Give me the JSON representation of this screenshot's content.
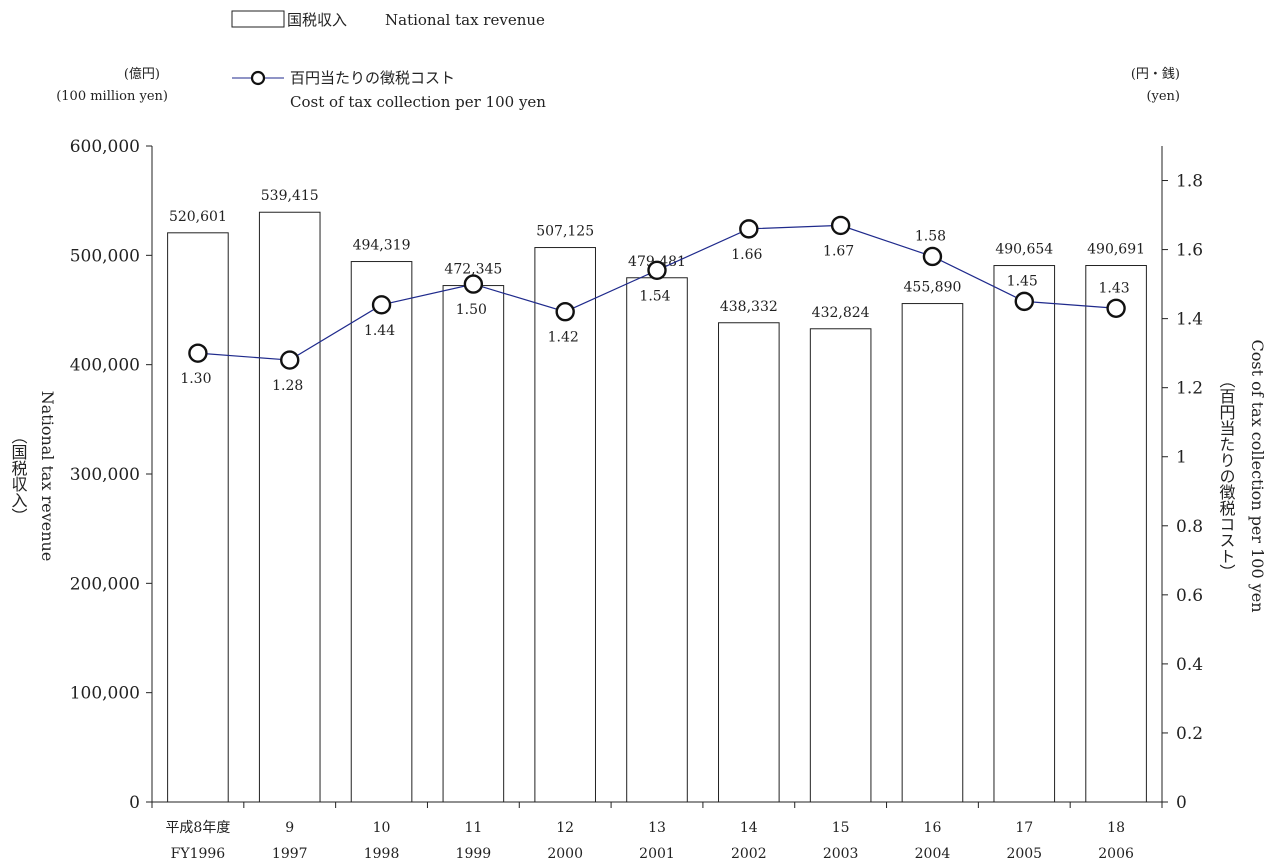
{
  "chart_data": {
    "type": "bar",
    "categories": [
      "平成8年度",
      "9",
      "10",
      "11",
      "12",
      "13",
      "14",
      "15",
      "16",
      "17",
      "18"
    ],
    "categories_en": [
      "FY1996",
      "1997",
      "1998",
      "1999",
      "2000",
      "2001",
      "2002",
      "2003",
      "2004",
      "2005",
      "2006"
    ],
    "series": [
      {
        "name": "国税収入 National tax revenue",
        "type": "bar",
        "axis": "left",
        "values": [
          520601,
          539415,
          494319,
          472345,
          507125,
          479481,
          438332,
          432824,
          455890,
          490654,
          490691
        ],
        "labels": [
          "520,601",
          "539,415",
          "494,319",
          "472,345",
          "507,125",
          "479,481",
          "438,332",
          "432,824",
          "455,890",
          "490,654",
          "490,691"
        ]
      },
      {
        "name": "百円当たりの徴税コスト Cost of tax collection per 100 yen",
        "type": "line",
        "axis": "right",
        "values": [
          1.3,
          1.28,
          1.44,
          1.5,
          1.42,
          1.54,
          1.66,
          1.67,
          1.58,
          1.45,
          1.43
        ],
        "labels": [
          "1.30",
          "1.28",
          "1.44",
          "1.50",
          "1.42",
          "1.54",
          "1.66",
          "1.67",
          "1.58",
          "1.45",
          "1.43"
        ],
        "color": "#1f2a8c"
      }
    ],
    "left_axis": {
      "unit_jp": "(億円)",
      "unit_en": "(100 million yen)",
      "title_jp": "（国税収入）",
      "title_en": "National tax revenue",
      "ylim": [
        0,
        600000
      ],
      "ticks": [
        0,
        100000,
        200000,
        300000,
        400000,
        500000,
        600000
      ],
      "tick_labels": [
        "0",
        "100,000",
        "200,000",
        "300,000",
        "400,000",
        "500,000",
        "600,000"
      ]
    },
    "right_axis": {
      "unit_jp": "(円・銭)",
      "unit_en": "(yen)",
      "title_jp": "（百円当たりの徴税コスト）",
      "title_en": "Cost of tax collection per 100 yen",
      "ylim": [
        0,
        1.9
      ],
      "ticks": [
        0,
        0.2,
        0.4,
        0.6,
        0.8,
        1,
        1.2,
        1.4,
        1.6,
        1.8
      ],
      "tick_labels": [
        "0",
        "0.2",
        "0.4",
        "0.6",
        "0.8",
        "1",
        "1.2",
        "1.4",
        "1.6",
        "1.8"
      ]
    },
    "legend": {
      "bar_jp": "国税収入",
      "bar_en": "National tax revenue",
      "line_jp": "百円当たりの徴税コスト",
      "line_en": "Cost of tax collection per 100 yen",
      "placement": "top-left"
    },
    "grid": false
  }
}
